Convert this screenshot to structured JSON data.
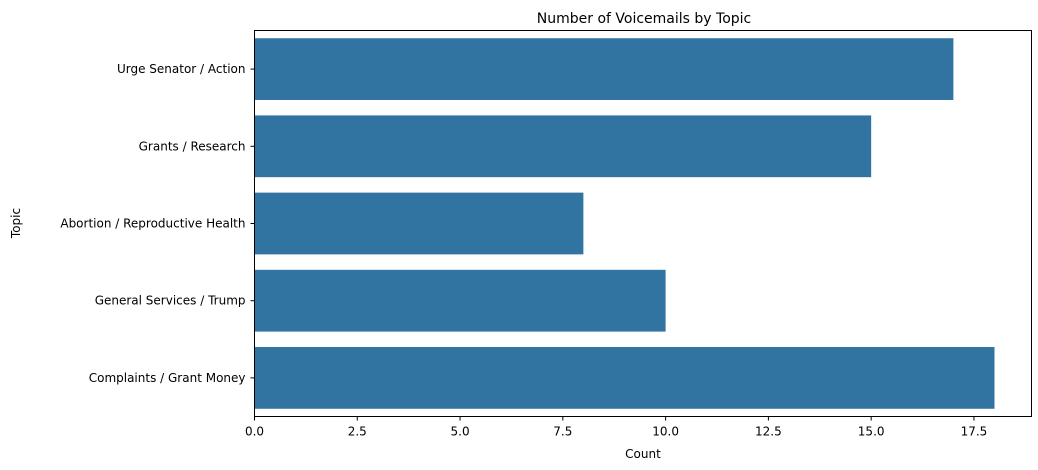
{
  "chart_data": {
    "type": "bar",
    "orientation": "horizontal",
    "title": "Number of Voicemails by Topic",
    "xlabel": "Count",
    "ylabel": "Topic",
    "categories": [
      "Urge Senator / Action",
      "Grants / Research",
      "Abortion / Reproductive Health",
      "General Services / Trump",
      "Complaints / Grant Money"
    ],
    "values": [
      17,
      15,
      8,
      10,
      18
    ],
    "xlim": [
      0,
      18.9
    ],
    "xticks": [
      0.0,
      2.5,
      5.0,
      7.5,
      10.0,
      12.5,
      15.0,
      17.5
    ],
    "xtick_labels": [
      "0.0",
      "2.5",
      "5.0",
      "7.5",
      "10.0",
      "12.5",
      "15.0",
      "17.5"
    ],
    "grid": false,
    "bar_color": "#3274a1"
  }
}
